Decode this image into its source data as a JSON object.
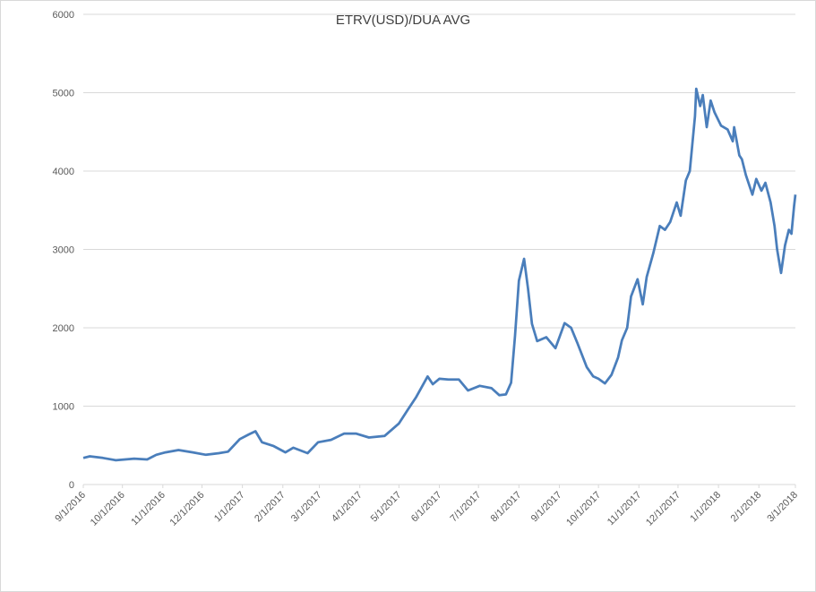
{
  "chart_data": {
    "type": "line",
    "title": "ETRV(USD)/DUA AVG",
    "x": [
      "9/1/2016",
      "9/6/2016",
      "9/16/2016",
      "9/26/2016",
      "10/10/2016",
      "10/20/2016",
      "10/27/2016",
      "11/3/2016",
      "11/13/2016",
      "11/24/2016",
      "12/4/2016",
      "12/14/2016",
      "12/21/2016",
      "12/30/2016",
      "1/6/2017",
      "1/11/2017",
      "1/16/2017",
      "1/25/2017",
      "2/3/2017",
      "2/9/2017",
      "2/20/2017",
      "2/28/2017",
      "3/10/2017",
      "3/20/2017",
      "3/29/2017",
      "4/8/2017",
      "4/20/2017",
      "5/1/2017",
      "5/8/2017",
      "5/14/2017",
      "5/23/2017",
      "5/27/2017",
      "6/1/2017",
      "6/8/2017",
      "6/16/2017",
      "6/23/2017",
      "7/2/2017",
      "7/11/2017",
      "7/17/2017",
      "7/22/2017",
      "7/26/2017",
      "7/29/2017",
      "8/1/2017",
      "8/5/2017",
      "8/8/2017",
      "8/11/2017",
      "8/15/2017",
      "8/22/2017",
      "8/29/2017",
      "9/5/2017",
      "9/10/2017",
      "9/15/2017",
      "9/22/2017",
      "9/27/2017",
      "10/1/2017",
      "10/6/2017",
      "10/11/2017",
      "10/16/2017",
      "10/19/2017",
      "10/23/2017",
      "10/26/2017",
      "10/31/2017",
      "11/4/2017",
      "11/7/2017",
      "11/12/2017",
      "11/17/2017",
      "11/21/2017",
      "11/25/2017",
      "11/30/2017",
      "12/3/2017",
      "12/7/2017",
      "12/10/2017",
      "12/12/2017",
      "12/14/2017",
      "12/15/2017",
      "12/18/2017",
      "12/20/2017",
      "12/23/2017",
      "12/26/2017",
      "12/29/2017",
      "1/3/2018",
      "1/8/2018",
      "1/12/2018",
      "1/13/2018",
      "1/17/2018",
      "1/19/2018",
      "1/22/2018",
      "1/27/2018",
      "1/30/2018",
      "2/3/2018",
      "2/6/2018",
      "2/10/2018",
      "2/13/2018",
      "2/15/2018",
      "2/18/2018",
      "2/21/2018",
      "2/24/2018",
      "2/26/2018",
      "2/28/2018",
      "3/1/2018"
    ],
    "series": [
      {
        "name": "ETRV(USD)/DUA AVG",
        "color": "#4a7ebb",
        "values": [
          340,
          360,
          340,
          310,
          330,
          320,
          380,
          410,
          440,
          410,
          380,
          400,
          420,
          580,
          640,
          680,
          540,
          490,
          410,
          470,
          400,
          540,
          570,
          650,
          650,
          600,
          620,
          780,
          960,
          1110,
          1380,
          1280,
          1350,
          1340,
          1340,
          1200,
          1260,
          1230,
          1140,
          1150,
          1300,
          1900,
          2600,
          2880,
          2500,
          2050,
          1830,
          1880,
          1740,
          2060,
          2000,
          1800,
          1500,
          1380,
          1350,
          1290,
          1400,
          1620,
          1840,
          2000,
          2400,
          2620,
          2300,
          2650,
          2950,
          3300,
          3250,
          3350,
          3600,
          3430,
          3880,
          4000,
          4350,
          4700,
          5050,
          4830,
          4970,
          4560,
          4900,
          4750,
          4580,
          4530,
          4380,
          4560,
          4200,
          4150,
          3950,
          3700,
          3900,
          3750,
          3850,
          3600,
          3300,
          3000,
          2700,
          3050,
          3250,
          3200,
          3550,
          3700
        ]
      }
    ],
    "xlim": [
      "9/1/2016",
      "3/1/2018"
    ],
    "xticks": [
      "9/1/2016",
      "10/1/2016",
      "11/1/2016",
      "12/1/2016",
      "1/1/2017",
      "2/1/2017",
      "3/1/2017",
      "4/1/2017",
      "5/1/2017",
      "6/1/2017",
      "7/1/2017",
      "8/1/2017",
      "9/1/2017",
      "10/1/2017",
      "11/1/2017",
      "12/1/2017",
      "1/1/2018",
      "2/1/2018",
      "3/1/2018"
    ],
    "ylim": [
      0,
      6000
    ],
    "yticks": [
      0,
      1000,
      2000,
      3000,
      4000,
      5000,
      6000
    ],
    "grid": true
  }
}
